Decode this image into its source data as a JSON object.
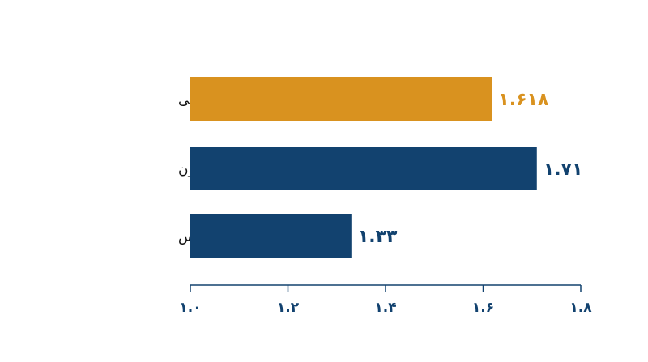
{
  "chart_data": {
    "type": "bar",
    "orientation": "horizontal",
    "categories": [
      "نسبت طلایی واقعی",
      "نمای پارتنون",
      "گسترش صدف ناتیلوس"
    ],
    "values": [
      1.618,
      1.71,
      1.33
    ],
    "value_labels": [
      "۱.۶۱۸",
      "۱.۷۱",
      "۱.۳۳"
    ],
    "colors": [
      "#d9921f",
      "#12426f",
      "#12426f"
    ],
    "xlim": [
      1.0,
      1.8
    ],
    "xticks": [
      {
        "value": 1.0,
        "label": "۱.۰"
      },
      {
        "value": 1.2,
        "label": "۱.۲"
      },
      {
        "value": 1.4,
        "label": "۱.۴"
      },
      {
        "value": 1.6,
        "label": "۱.۶"
      },
      {
        "value": 1.8,
        "label": "۱.۸"
      }
    ],
    "grid": false
  }
}
